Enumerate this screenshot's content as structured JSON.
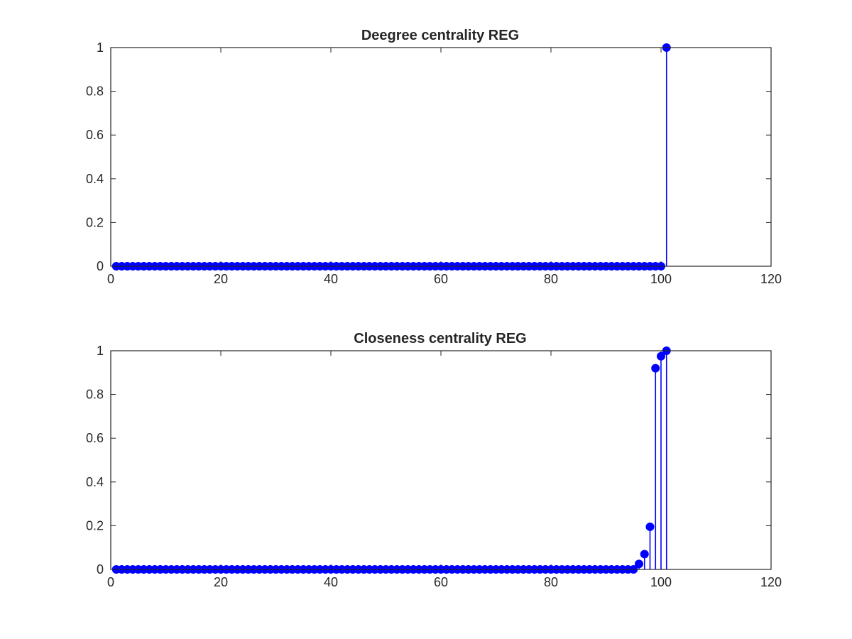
{
  "chart_data": [
    {
      "type": "stem",
      "title": "Deegree centrality REG",
      "xlabel": "",
      "ylabel": "",
      "xlim": [
        0,
        120
      ],
      "ylim": [
        0,
        1
      ],
      "xticks": [
        0,
        20,
        40,
        60,
        80,
        100,
        120
      ],
      "yticks": [
        0,
        0.2,
        0.4,
        0.6,
        0.8,
        1
      ],
      "grid": false,
      "color": "#0000ff",
      "series": [
        {
          "x_start": 1,
          "values": [
            0,
            0,
            0,
            0,
            0,
            0,
            0,
            0,
            0,
            0,
            0,
            0,
            0,
            0,
            0,
            0,
            0,
            0,
            0,
            0,
            0,
            0,
            0,
            0,
            0,
            0,
            0,
            0,
            0,
            0,
            0,
            0,
            0,
            0,
            0,
            0,
            0,
            0,
            0,
            0,
            0,
            0,
            0,
            0,
            0,
            0,
            0,
            0,
            0,
            0,
            0,
            0,
            0,
            0,
            0,
            0,
            0,
            0,
            0,
            0,
            0,
            0,
            0,
            0,
            0,
            0,
            0,
            0,
            0,
            0,
            0,
            0,
            0,
            0,
            0,
            0,
            0,
            0,
            0,
            0,
            0,
            0,
            0,
            0,
            0,
            0,
            0,
            0,
            0,
            0,
            0,
            0,
            0,
            0,
            0,
            0,
            0,
            0,
            0,
            0,
            1
          ]
        }
      ]
    },
    {
      "type": "stem",
      "title": "Closeness centrality REG",
      "xlabel": "",
      "ylabel": "",
      "xlim": [
        0,
        120
      ],
      "ylim": [
        0,
        1
      ],
      "xticks": [
        0,
        20,
        40,
        60,
        80,
        100,
        120
      ],
      "yticks": [
        0,
        0.2,
        0.4,
        0.6,
        0.8,
        1
      ],
      "grid": false,
      "color": "#0000ff",
      "series": [
        {
          "x_start": 1,
          "values": [
            0,
            0,
            0,
            0,
            0,
            0,
            0,
            0,
            0,
            0,
            0,
            0,
            0,
            0,
            0,
            0,
            0,
            0,
            0,
            0,
            0,
            0,
            0,
            0,
            0,
            0,
            0,
            0,
            0,
            0,
            0,
            0,
            0,
            0,
            0,
            0,
            0,
            0,
            0,
            0,
            0,
            0,
            0,
            0,
            0,
            0,
            0,
            0,
            0,
            0,
            0,
            0,
            0,
            0,
            0,
            0,
            0,
            0,
            0,
            0,
            0,
            0,
            0,
            0,
            0,
            0,
            0,
            0,
            0,
            0,
            0,
            0,
            0,
            0,
            0,
            0,
            0,
            0,
            0,
            0,
            0,
            0,
            0,
            0,
            0,
            0,
            0,
            0,
            0,
            0,
            0,
            0,
            0,
            0,
            0,
            0.025,
            0.07,
            0.195,
            0.92,
            0.975,
            1
          ]
        }
      ]
    }
  ]
}
